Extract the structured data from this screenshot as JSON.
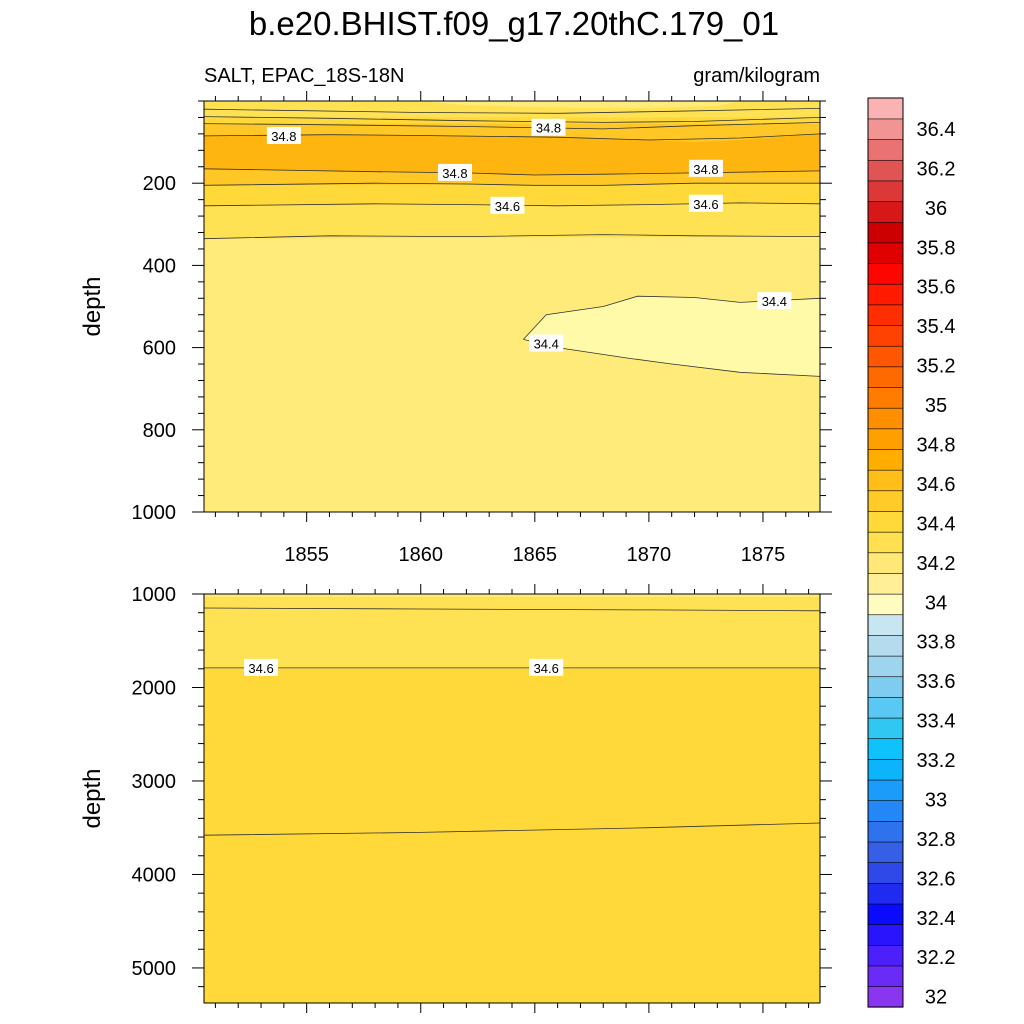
{
  "title": "b.e20.BHIST.f09_g17.20thC.179_01",
  "subtitle_left": "SALT, EPAC_18S-18N",
  "subtitle_right": "gram/kilogram",
  "chart_data": [
    {
      "type": "contour",
      "panel": "upper",
      "ylabel": "depth",
      "xlim": [
        1850.5,
        1877.5
      ],
      "ylim": [
        0,
        1000
      ],
      "y_inverted": true,
      "xticks": [
        1855,
        1860,
        1865,
        1870,
        1875
      ],
      "xtick_labels": [
        "1855",
        "1860",
        "1865",
        "1870",
        "1875"
      ],
      "yticks": [
        200,
        400,
        600,
        800,
        1000
      ],
      "ytick_labels": [
        "200",
        "400",
        "600",
        "800",
        "1000"
      ],
      "regions": [
        {
          "name": "salt-34.5-34.6",
          "color": "#FFE254",
          "x": [
            1850.5,
            1877.5,
            1877.5,
            1850.5
          ],
          "y": [
            20,
            20,
            330,
            335
          ]
        },
        {
          "name": "salt-34.6-34.7",
          "color": "#FFD83A",
          "x": [
            1850.5,
            1877.5,
            1877.5,
            1850.5
          ],
          "y": [
            40,
            40,
            250,
            255
          ]
        },
        {
          "name": "salt-34.7-34.8",
          "color": "#FFC725",
          "x": [
            1850.5,
            1877.5,
            1877.5,
            1850.5
          ],
          "y": [
            55,
            55,
            200,
            205
          ]
        },
        {
          "name": "salt-34.8-34.9",
          "color": "#FFB50F",
          "x": [
            1850.5,
            1856,
            1862,
            1867,
            1870,
            1872,
            1874,
            1877.5,
            1877.5,
            1872,
            1868,
            1865,
            1862,
            1858,
            1850.5
          ],
          "y": [
            85,
            82,
            85,
            90,
            95,
            100,
            95,
            80,
            170,
            175,
            178,
            180,
            175,
            172,
            165
          ]
        },
        {
          "name": "salt-34.3-34.4",
          "color": "#FFFAA8",
          "x": [
            1864.5,
            1865.5,
            1868,
            1869.5,
            1872,
            1874,
            1877.5,
            1877.5,
            1874,
            1871,
            1869,
            1866,
            1864.5
          ],
          "y": [
            580,
            520,
            500,
            475,
            478,
            490,
            480,
            670,
            660,
            640,
            625,
            600,
            580
          ]
        },
        {
          "name": "salt-34.5-34.6-top",
          "color": "#FFE254",
          "x": [
            1850.5,
            1860,
            1864,
            1870,
            1877.5,
            1877.5,
            1871,
            1866,
            1860,
            1850.5
          ],
          "y": [
            0,
            0,
            0,
            0,
            0,
            25,
            22,
            28,
            28,
            25
          ]
        },
        {
          "name": "salt-34.4-34.5-top",
          "color": "#FFEB7A",
          "x": [
            1860,
            1864,
            1868,
            1871,
            1874,
            1873,
            1870,
            1866,
            1862
          ],
          "y": [
            0,
            0,
            0,
            0,
            0,
            12,
            18,
            16,
            10
          ]
        }
      ],
      "contour_lines": [
        {
          "x": [
            1850.5,
            1860,
            1866,
            1871,
            1877.5
          ],
          "y": [
            20,
            28,
            30,
            25,
            18
          ]
        },
        {
          "x": [
            1850.5,
            1856,
            1862,
            1868,
            1872,
            1877.5
          ],
          "y": [
            38,
            42,
            48,
            52,
            50,
            40
          ]
        },
        {
          "x": [
            1850.5,
            1856,
            1862,
            1868,
            1872,
            1877.5
          ],
          "y": [
            55,
            58,
            62,
            68,
            60,
            52
          ]
        },
        {
          "x": [
            1850.5,
            1856,
            1860,
            1866,
            1870,
            1874,
            1877.5
          ],
          "y": [
            85,
            82,
            84,
            88,
            95,
            90,
            80
          ]
        },
        {
          "x": [
            1850.5,
            1858,
            1862,
            1865,
            1868,
            1872,
            1877.5
          ],
          "y": [
            165,
            172,
            175,
            180,
            178,
            175,
            170
          ]
        },
        {
          "x": [
            1850.5,
            1858,
            1862,
            1865,
            1868,
            1872,
            1877.5
          ],
          "y": [
            205,
            200,
            202,
            205,
            205,
            200,
            200
          ]
        },
        {
          "x": [
            1850.5,
            1858,
            1862,
            1866,
            1870,
            1874,
            1877.5
          ],
          "y": [
            255,
            250,
            252,
            255,
            252,
            248,
            250
          ]
        },
        {
          "x": [
            1850.5,
            1856,
            1862,
            1868,
            1872,
            1877.5
          ],
          "y": [
            335,
            328,
            330,
            325,
            328,
            330
          ]
        },
        {
          "x": [
            1864.5,
            1865.5,
            1868,
            1869.5,
            1872,
            1874,
            1877.5
          ],
          "y": [
            580,
            520,
            500,
            475,
            478,
            490,
            480
          ]
        },
        {
          "x": [
            1864.5,
            1866,
            1869,
            1871,
            1874,
            1877.5
          ],
          "y": [
            580,
            600,
            625,
            640,
            660,
            670
          ]
        }
      ],
      "contour_labels": [
        {
          "text": "34.8",
          "x": 1854.0,
          "y": 85
        },
        {
          "text": "34.8",
          "x": 1865.6,
          "y": 65
        },
        {
          "text": "34.8",
          "x": 1861.5,
          "y": 175
        },
        {
          "text": "34.8",
          "x": 1872.5,
          "y": 165
        },
        {
          "text": "34.6",
          "x": 1863.8,
          "y": 255
        },
        {
          "text": "34.6",
          "x": 1872.5,
          "y": 250
        },
        {
          "text": "34.4",
          "x": 1875.5,
          "y": 487
        },
        {
          "text": "34.4",
          "x": 1865.5,
          "y": 590
        }
      ]
    },
    {
      "type": "contour",
      "panel": "lower",
      "ylabel": "depth",
      "xlim": [
        1850.5,
        1877.5
      ],
      "ylim": [
        1000,
        5375
      ],
      "y_inverted": true,
      "yticks": [
        1000,
        2000,
        3000,
        4000,
        5000
      ],
      "ytick_labels": [
        "1000",
        "2000",
        "3000",
        "4000",
        "5000"
      ],
      "regions": [
        {
          "name": "salt-34.5-34.6",
          "color": "#FFE254",
          "x": [
            1850.5,
            1877.5,
            1877.5,
            1850.5
          ],
          "y": [
            1000,
            1000,
            1800,
            1800
          ]
        },
        {
          "name": "salt-34.6-34.7",
          "color": "#FFD83A",
          "x": [
            1850.5,
            1877.5,
            1877.5,
            1850.5
          ],
          "y": [
            1800,
            1800,
            5375,
            5375
          ]
        },
        {
          "name": "salt-34.4-34.5-top",
          "color": "#FFEB7A",
          "x": [
            1850.5,
            1877.5,
            1877.5,
            1850.5
          ],
          "y": [
            1000,
            1000,
            1030,
            1030
          ]
        }
      ],
      "contour_lines": [
        {
          "x": [
            1850.5,
            1860,
            1870,
            1877.5
          ],
          "y": [
            1150,
            1160,
            1170,
            1180
          ]
        },
        {
          "x": [
            1850.5,
            1860,
            1870,
            1877.5
          ],
          "y": [
            1790,
            1790,
            1790,
            1790
          ]
        },
        {
          "x": [
            1850.5,
            1860,
            1870,
            1877.5
          ],
          "y": [
            3580,
            3550,
            3500,
            3450
          ]
        }
      ],
      "contour_labels": [
        {
          "text": "34.6",
          "x": 1853.0,
          "y": 1790
        },
        {
          "text": "34.6",
          "x": 1865.5,
          "y": 1790
        }
      ]
    }
  ],
  "colorbar": {
    "labels": [
      "32",
      "32.2",
      "32.4",
      "32.6",
      "32.8",
      "33",
      "33.2",
      "33.4",
      "33.6",
      "33.8",
      "34",
      "34.2",
      "34.4",
      "34.6",
      "34.8",
      "35",
      "35.2",
      "35.4",
      "35.6",
      "35.8",
      "36",
      "36.2",
      "36.4"
    ],
    "colors": [
      "#8A35F0",
      "#6A2BF6",
      "#4B20FA",
      "#2A14FC",
      "#0A0AFC",
      "#1F2CF0",
      "#2F48E8",
      "#3560E6",
      "#2E72EE",
      "#2388F6",
      "#1C9CFA",
      "#0DB4FC",
      "#10C2FC",
      "#30C8F2",
      "#5AC8F2",
      "#7ECCEF",
      "#9ED4EE",
      "#B4DCEE",
      "#C8E6F2",
      "#FFFCC0",
      "#FFF098",
      "#FFE878",
      "#FFE050",
      "#FFD83A",
      "#FFCB28",
      "#FFBE18",
      "#FFAE00",
      "#FF9F00",
      "#FF8E00",
      "#FF7C00",
      "#FF6A00",
      "#FF5600",
      "#FF4200",
      "#FF2E00",
      "#FF1A00",
      "#FF0500",
      "#E00000",
      "#CC0000",
      "#D61818",
      "#DC3838",
      "#E05454",
      "#EA7272",
      "#F39494",
      "#FAB2B2"
    ]
  }
}
